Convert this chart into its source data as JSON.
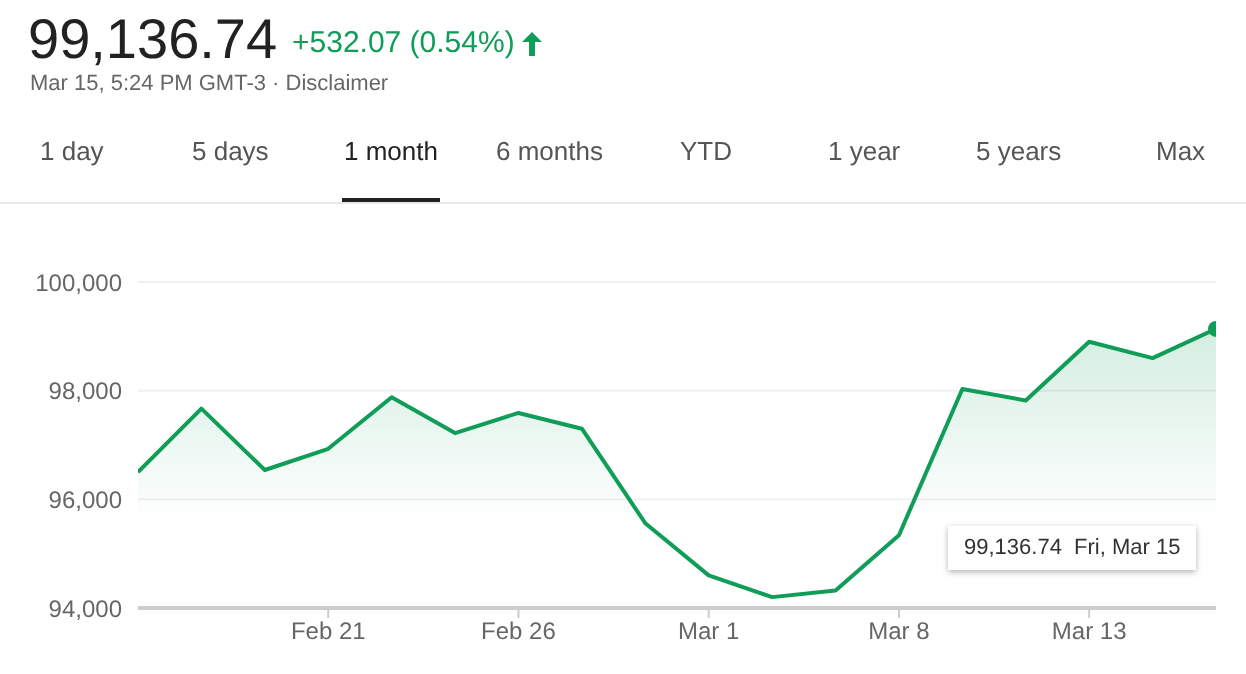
{
  "chart_data": {
    "type": "area",
    "title": "99,136.74",
    "subtitle": "+532.07 (0.54%)",
    "annotations": [
      "Mar 15, 5:24 PM GMT-3 · Disclaimer",
      "1 day",
      "5 days",
      "1 month",
      "6 months",
      "YTD",
      "1 year",
      "5 years",
      "Max",
      "99,136.74  Fri, Mar 15"
    ],
    "categories": [
      null,
      null,
      null,
      "Feb 21",
      null,
      null,
      "Feb 26",
      null,
      null,
      "Mar 1",
      null,
      null,
      "Mar 8",
      null,
      null,
      "Mar 13",
      null,
      null
    ],
    "series": [
      {
        "color": "#0f9d58",
        "values": [
          96500,
          97670,
          96540,
          96930,
          97880,
          97220,
          97590,
          97300,
          95560,
          94600,
          94200,
          94320,
          95340,
          98030,
          97820,
          98900,
          98600,
          99136.74
        ]
      }
    ],
    "ylim": [
      94000,
      100000
    ],
    "yticks": [
      {
        "value": 94000,
        "label": "94,000"
      },
      {
        "value": 96000,
        "label": "96,000"
      },
      {
        "value": 98000,
        "label": "98,000"
      },
      {
        "value": 100000,
        "label": "100,000"
      }
    ],
    "grid": "y",
    "marker": "none",
    "legend": false
  }
}
